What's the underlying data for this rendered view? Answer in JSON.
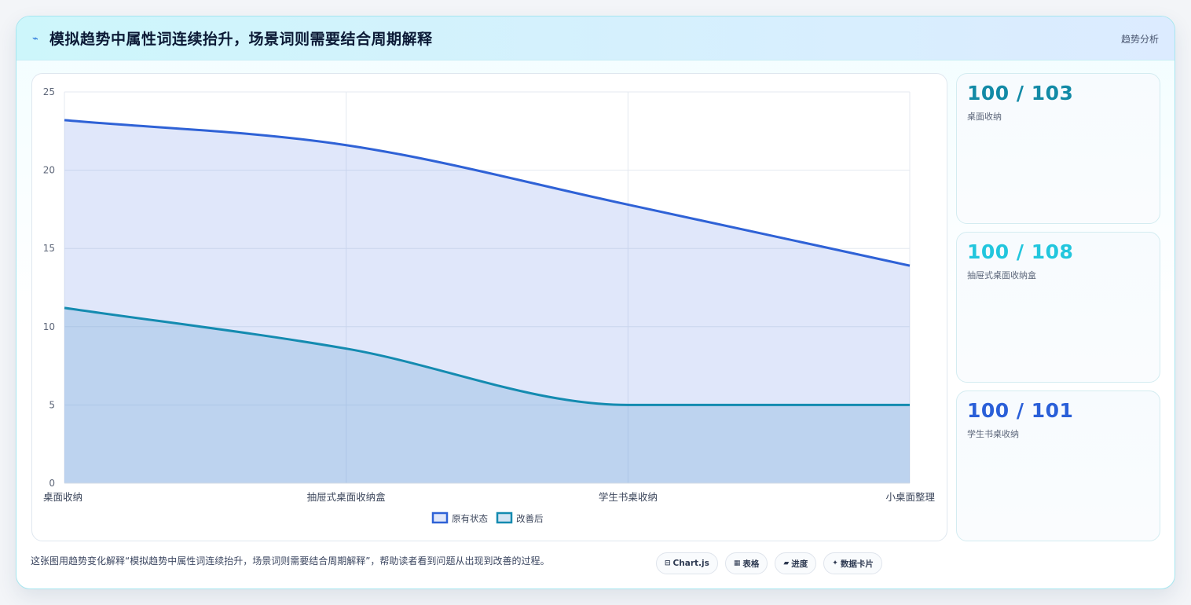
{
  "header": {
    "icon": "trend-line-icon",
    "icon_glyph": "⌁",
    "title": "模拟趋势中属性词连续抬升，场景词则需要结合周期解释",
    "tag": "趋势分析"
  },
  "chart_data": {
    "type": "area",
    "categories": [
      "桌面收纳",
      "抽屉式桌面收纳盒",
      "学生书桌收纳",
      "小桌面整理"
    ],
    "series": [
      {
        "name": "原有状态",
        "values": [
          23.2,
          21.6,
          17.8,
          13.9
        ],
        "color": "#2f62d6",
        "fill": "rgba(90,130,230,0.19)"
      },
      {
        "name": "改善后",
        "values": [
          11.2,
          8.6,
          5.0,
          5.0
        ],
        "color": "#148bb0",
        "fill": "rgba(110,165,215,0.30)"
      }
    ],
    "yticks": [
      "0",
      "5",
      "10",
      "15",
      "20",
      "25"
    ],
    "ylim": [
      0,
      25
    ],
    "grid": true,
    "legend": "bottom"
  },
  "stats": [
    {
      "value": "100 / 103",
      "label": "桌面收纳",
      "color": "#128aa6"
    },
    {
      "value": "100 / 108",
      "label": "抽屉式桌面收纳盒",
      "color": "#22c6dd"
    },
    {
      "value": "100 / 101",
      "label": "学生书桌收纳",
      "color": "#2a5fd8"
    }
  ],
  "footer": {
    "caption": "这张图用趋势变化解释“模拟趋势中属性词连续抬升，场景词则需要结合周期解释”，帮助读者看到问题从出现到改善的过程。",
    "chips": [
      {
        "icon": "chart-icon",
        "glyph": "⊟",
        "label": "Chart.js"
      },
      {
        "icon": "table-icon",
        "glyph": "▦",
        "label": "表格"
      },
      {
        "icon": "progress-icon",
        "glyph": "▰",
        "label": "进度"
      },
      {
        "icon": "sparkle-icon",
        "glyph": "✦",
        "label": "数据卡片"
      }
    ]
  }
}
